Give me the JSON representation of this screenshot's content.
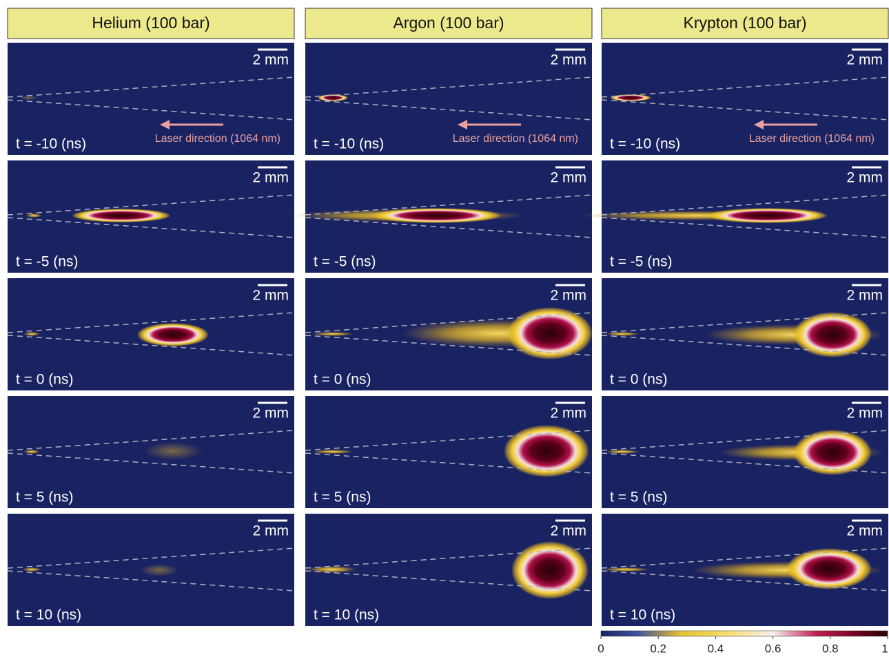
{
  "columns": [
    "Helium (100 bar)",
    "Argon (100 bar)",
    "Krypton (100 bar)"
  ],
  "rows": [
    "t = -10 (ns)",
    "t = -5 (ns)",
    "t = 0 (ns)",
    "t = 5 (ns)",
    "t = 10 (ns)"
  ],
  "scale_bar": "2 mm",
  "laser_label": "Laser direction (1064 nm)",
  "colorbar": {
    "ticks": [
      0,
      0.2,
      0.4,
      0.6,
      0.8,
      1
    ]
  }
}
